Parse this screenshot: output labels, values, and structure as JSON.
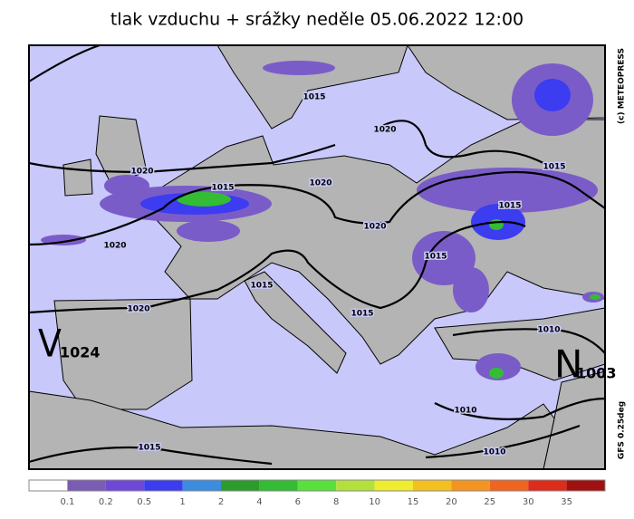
{
  "title": "tlak vzduchu + srážky  neděle 05.06.2022 12:00",
  "isobar_labels": [
    "1015",
    "1020",
    "1020",
    "1015",
    "1020",
    "1020",
    "1015",
    "1015",
    "1020",
    "1015",
    "1015",
    "1020",
    "1015",
    "1010",
    "1010",
    "1015",
    "1010"
  ],
  "pressure_centers": [
    {
      "letter": "V",
      "value": "1024"
    },
    {
      "letter": "N",
      "value": "1003"
    }
  ],
  "credits": [
    "(c) METEOPRESS",
    "GFS 0.25deg"
  ],
  "colorbar": {
    "labels": [
      0.1,
      0.2,
      0.5,
      1,
      2,
      4,
      6,
      8,
      10,
      15,
      20,
      25,
      30,
      35
    ],
    "colors": [
      "#ffffff",
      "#7a5cb4",
      "#7048d8",
      "#3c3cf0",
      "#3c8ce0",
      "#2c9c2c",
      "#34bc34",
      "#5ae03c",
      "#b4e03c",
      "#f0ec30",
      "#f4c020",
      "#f49420",
      "#f06420",
      "#dc2c1c",
      "#a01010"
    ]
  }
}
